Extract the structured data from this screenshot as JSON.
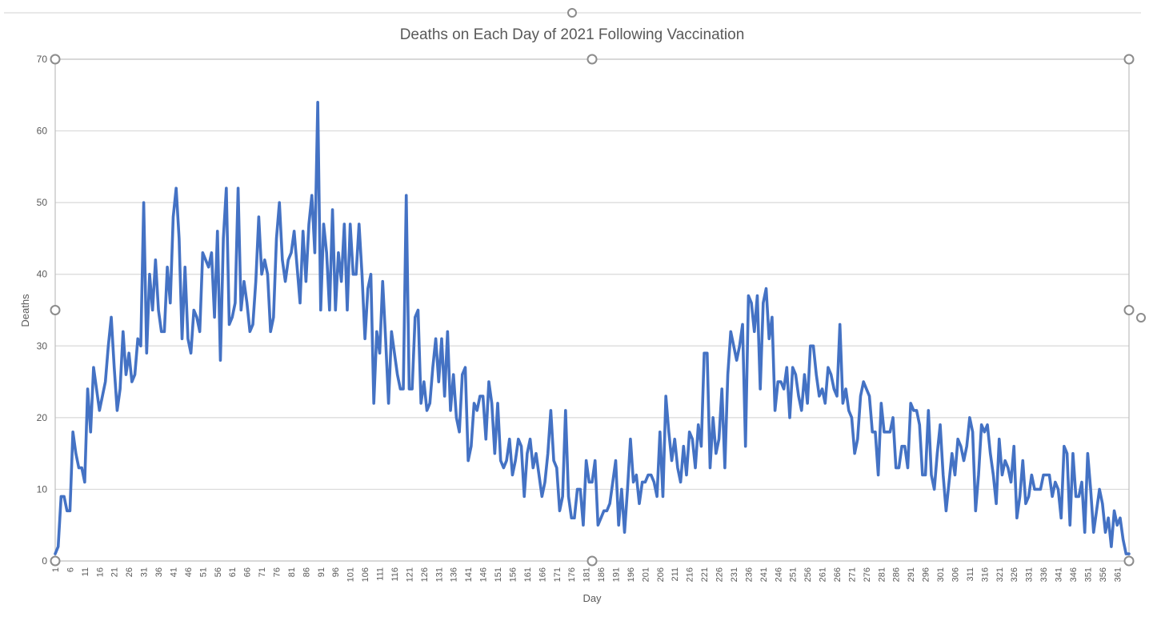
{
  "chart_data": {
    "type": "line",
    "title": "Deaths on Each Day of 2021 Following Vaccination",
    "xlabel": "Day",
    "ylabel": "Deaths",
    "ylim": [
      0,
      70
    ],
    "yticks": [
      "0",
      "10",
      "20",
      "30",
      "40",
      "50",
      "60",
      "70"
    ],
    "xlim": [
      1,
      365
    ],
    "xticks": [
      "1",
      "6",
      "11",
      "16",
      "21",
      "26",
      "31",
      "36",
      "41",
      "46",
      "51",
      "56",
      "61",
      "66",
      "71",
      "76",
      "81",
      "86",
      "91",
      "96",
      "101",
      "106",
      "111",
      "116",
      "121",
      "126",
      "131",
      "136",
      "141",
      "146",
      "151",
      "156",
      "161",
      "166",
      "171",
      "176",
      "181",
      "186",
      "191",
      "196",
      "201",
      "206",
      "211",
      "216",
      "221",
      "226",
      "231",
      "236",
      "241",
      "246",
      "251",
      "256",
      "261",
      "266",
      "271",
      "276",
      "281",
      "286",
      "291",
      "296",
      "301",
      "306",
      "311",
      "316",
      "321",
      "326",
      "331",
      "336",
      "341",
      "346",
      "351",
      "356",
      "361"
    ],
    "grid": true,
    "legend": "none",
    "series": [
      {
        "color": "#4472c4",
        "x": [
          1,
          2,
          3,
          4,
          5,
          6,
          7,
          8,
          9,
          10,
          11,
          12,
          13,
          14,
          15,
          16,
          17,
          18,
          19,
          20,
          21,
          22,
          23,
          24,
          25,
          26,
          27,
          28,
          29,
          30,
          31,
          32,
          33,
          34,
          35,
          36,
          37,
          38,
          39,
          40,
          41,
          42,
          43,
          44,
          45,
          46,
          47,
          48,
          49,
          50,
          51,
          52,
          53,
          54,
          55,
          56,
          57,
          58,
          59,
          60,
          61,
          62,
          63,
          64,
          65,
          66,
          67,
          68,
          69,
          70,
          71,
          72,
          73,
          74,
          75,
          76,
          77,
          78,
          79,
          80,
          81,
          82,
          83,
          84,
          85,
          86,
          87,
          88,
          89,
          90,
          91,
          92,
          93,
          94,
          95,
          96,
          97,
          98,
          99,
          100,
          101,
          102,
          103,
          104,
          105,
          106,
          107,
          108,
          109,
          110,
          111,
          112,
          113,
          114,
          115,
          116,
          117,
          118,
          119,
          120,
          121,
          122,
          123,
          124,
          125,
          126,
          127,
          128,
          129,
          130,
          131,
          132,
          133,
          134,
          135,
          136,
          137,
          138,
          139,
          140,
          141,
          142,
          143,
          144,
          145,
          146,
          147,
          148,
          149,
          150,
          151,
          152,
          153,
          154,
          155,
          156,
          157,
          158,
          159,
          160,
          161,
          162,
          163,
          164,
          165,
          166,
          167,
          168,
          169,
          170,
          171,
          172,
          173,
          174,
          175,
          176,
          177,
          178,
          179,
          180,
          181,
          182,
          183,
          184,
          185,
          186,
          187,
          188,
          189,
          190,
          191,
          192,
          193,
          194,
          195,
          196,
          197,
          198,
          199,
          200,
          201,
          202,
          203,
          204,
          205,
          206,
          207,
          208,
          209,
          210,
          211,
          212,
          213,
          214,
          215,
          216,
          217,
          218,
          219,
          220,
          221,
          222,
          223,
          224,
          225,
          226,
          227,
          228,
          229,
          230,
          231,
          232,
          233,
          234,
          235,
          236,
          237,
          238,
          239,
          240,
          241,
          242,
          243,
          244,
          245,
          246,
          247,
          248,
          249,
          250,
          251,
          252,
          253,
          254,
          255,
          256,
          257,
          258,
          259,
          260,
          261,
          262,
          263,
          264,
          265,
          266,
          267,
          268,
          269,
          270,
          271,
          272,
          273,
          274,
          275,
          276,
          277,
          278,
          279,
          280,
          281,
          282,
          283,
          284,
          285,
          286,
          287,
          288,
          289,
          290,
          291,
          292,
          293,
          294,
          295,
          296,
          297,
          298,
          299,
          300,
          301,
          302,
          303,
          304,
          305,
          306,
          307,
          308,
          309,
          310,
          311,
          312,
          313,
          314,
          315,
          316,
          317,
          318,
          319,
          320,
          321,
          322,
          323,
          324,
          325,
          326,
          327,
          328,
          329,
          330,
          331,
          332,
          333,
          334,
          335,
          336,
          337,
          338,
          339,
          340,
          341,
          342,
          343,
          344,
          345,
          346,
          347,
          348,
          349,
          350,
          351,
          352,
          353,
          354,
          355,
          356,
          357,
          358,
          359,
          360,
          361,
          362,
          363,
          364,
          365
        ],
        "y": [
          1,
          2,
          9,
          9,
          7,
          7,
          18,
          15,
          13,
          13,
          11,
          24,
          18,
          27,
          24,
          21,
          23,
          25,
          30,
          34,
          27,
          21,
          24,
          32,
          26,
          29,
          25,
          26,
          31,
          30,
          50,
          29,
          40,
          35,
          42,
          35,
          32,
          32,
          41,
          36,
          48,
          52,
          45,
          31,
          41,
          31,
          29,
          35,
          34,
          32,
          43,
          42,
          41,
          43,
          34,
          46,
          28,
          45,
          52,
          33,
          34,
          36,
          52,
          35,
          39,
          36,
          32,
          33,
          39,
          48,
          40,
          42,
          40,
          32,
          34,
          45,
          50,
          42,
          39,
          42,
          43,
          46,
          41,
          36,
          46,
          39,
          47,
          51,
          43,
          64,
          35,
          47,
          43,
          35,
          49,
          35,
          43,
          39,
          47,
          35,
          47,
          40,
          40,
          47,
          40,
          31,
          38,
          40,
          22,
          32,
          29,
          39,
          31,
          22,
          32,
          29,
          26,
          24,
          24,
          51,
          24,
          24,
          34,
          35,
          22,
          25,
          21,
          22,
          27,
          31,
          25,
          31,
          23,
          32,
          21,
          26,
          20,
          18,
          26,
          27,
          14,
          16,
          22,
          21,
          23,
          23,
          17,
          25,
          22,
          15,
          22,
          14,
          13,
          14,
          17,
          12,
          14,
          17,
          16,
          9,
          15,
          17,
          13,
          15,
          12,
          9,
          11,
          15,
          21,
          14,
          13,
          7,
          9,
          21,
          9,
          6,
          6,
          10,
          10,
          5,
          14,
          11,
          11,
          14,
          5,
          6,
          7,
          7,
          8,
          11,
          14,
          5,
          10,
          4,
          10,
          17,
          11,
          12,
          8,
          11,
          11,
          12,
          12,
          11,
          9,
          18,
          9,
          23,
          18,
          14,
          17,
          13,
          11,
          16,
          12,
          18,
          17,
          13,
          19,
          16,
          29,
          29,
          13,
          20,
          15,
          17,
          24,
          13,
          26,
          32,
          30,
          28,
          30,
          33,
          16,
          37,
          36,
          32,
          37,
          24,
          36,
          38,
          31,
          34,
          21,
          25,
          25,
          24,
          27,
          20,
          27,
          26,
          23,
          21,
          26,
          22,
          30,
          30,
          26,
          23,
          24,
          22,
          27,
          26,
          24,
          23,
          33,
          22,
          24,
          21,
          20,
          15,
          17,
          23,
          25,
          24,
          23,
          18,
          18,
          12,
          22,
          18,
          18,
          18,
          20,
          13,
          13,
          16,
          16,
          13,
          22,
          21,
          21,
          19,
          12,
          12,
          21,
          12,
          10,
          15,
          19,
          12,
          7,
          11,
          15,
          12,
          17,
          16,
          14,
          16,
          20,
          18,
          7,
          12,
          19,
          18,
          19,
          15,
          12,
          8,
          17,
          12,
          14,
          13,
          11,
          16,
          6,
          9,
          14,
          8,
          9,
          12,
          10,
          10,
          10,
          12,
          12,
          12,
          9,
          11,
          10,
          6,
          16,
          15,
          5,
          15,
          9,
          9,
          11,
          4,
          15,
          10,
          4,
          7,
          10,
          8,
          4,
          6,
          2,
          7,
          5,
          6,
          3,
          1,
          1
        ]
      }
    ]
  }
}
